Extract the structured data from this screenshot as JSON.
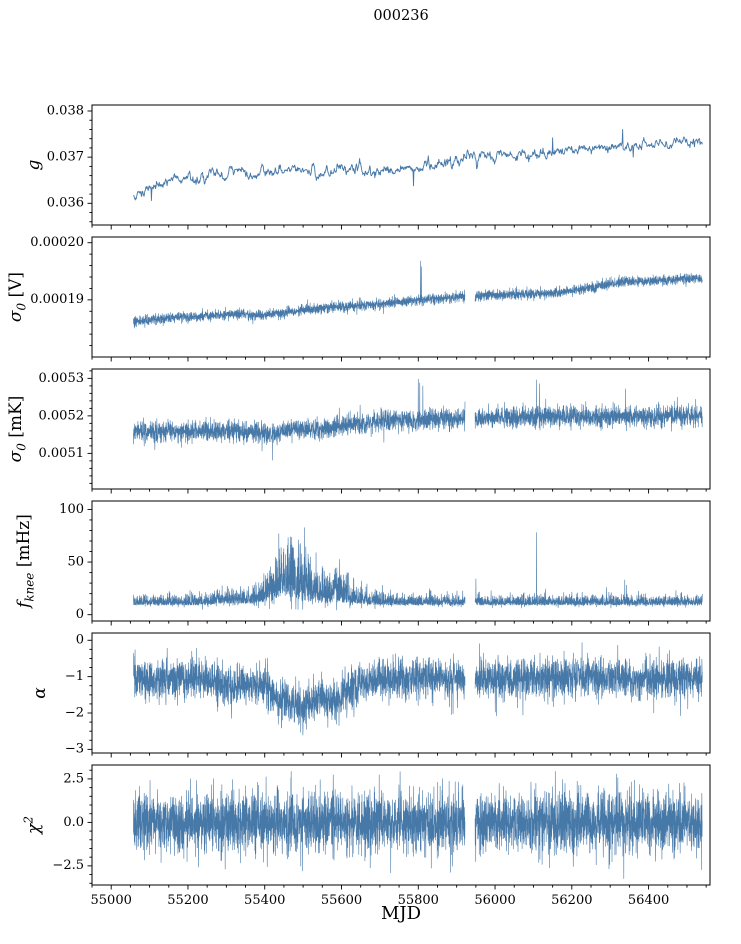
{
  "chart_meta": {
    "title": "000236",
    "xlabel": "MJD",
    "xlim": [
      54950,
      56560
    ],
    "xticks": [
      55000,
      55200,
      55400,
      55600,
      55800,
      56000,
      56200,
      56400
    ],
    "xtick_labels": [
      "55000",
      "55200",
      "55400",
      "55600",
      "55800",
      "56000",
      "56200",
      "56400"
    ],
    "x_minor_step": 50,
    "data_xrange": [
      55058,
      56540
    ],
    "gap": [
      55922,
      55948
    ],
    "line_color": "#4678a8",
    "axis_color": "#000000",
    "background": "#ffffff",
    "seed": 1337
  },
  "chart_data": [
    {
      "type": "line",
      "name": "gain",
      "ylabel_parts": {
        "main": "g"
      },
      "ylim": [
        0.03553,
        0.03813
      ],
      "yticks": [
        0.036,
        0.037,
        0.038
      ],
      "ytick_labels": [
        "0.036",
        "0.037",
        "0.038"
      ],
      "y_minor_step": 0.0002,
      "has_gap": false,
      "series": {
        "step": 1.2,
        "mode": "gauss",
        "noise": 4.2e-05,
        "ar": 0.78,
        "trend": [
          [
            55058,
            0.03615
          ],
          [
            55090,
            0.03632
          ],
          [
            55130,
            0.03645
          ],
          [
            55170,
            0.03652
          ],
          [
            55220,
            0.03658
          ],
          [
            55280,
            0.03662
          ],
          [
            55340,
            0.03664
          ],
          [
            55420,
            0.03666
          ],
          [
            55480,
            0.03676
          ],
          [
            55540,
            0.03664
          ],
          [
            55600,
            0.03676
          ],
          [
            55660,
            0.03668
          ],
          [
            55720,
            0.0367
          ],
          [
            55800,
            0.0368
          ],
          [
            55860,
            0.03684
          ],
          [
            55920,
            0.03698
          ],
          [
            56000,
            0.037
          ],
          [
            56080,
            0.03703
          ],
          [
            56160,
            0.03713
          ],
          [
            56240,
            0.03716
          ],
          [
            56320,
            0.03722
          ],
          [
            56400,
            0.03724
          ],
          [
            56470,
            0.03728
          ],
          [
            56540,
            0.0373
          ]
        ],
        "spikes": [
          [
            55105,
            0.03606
          ],
          [
            55788,
            0.03638
          ],
          [
            56088,
            0.0369
          ],
          [
            56150,
            0.03742
          ],
          [
            56332,
            0.0376
          ],
          [
            56360,
            0.037
          ]
        ]
      }
    },
    {
      "type": "line",
      "name": "sigma0-volts",
      "ylabel_parts": {
        "main": "σ",
        "sub": "0",
        "unit": " [V]"
      },
      "ylim": [
        0.00018,
        0.000201
      ],
      "yticks": [
        0.00019,
        0.0002
      ],
      "ytick_labels": [
        "0.00019",
        "0.00020"
      ],
      "y_minor_step": 2e-06,
      "has_gap": true,
      "series": {
        "step": 0.35,
        "mode": "gauss",
        "noise": 4.5e-07,
        "ar": 0,
        "trend": [
          [
            55058,
            0.0001862
          ],
          [
            55150,
            0.0001868
          ],
          [
            55250,
            0.0001872
          ],
          [
            55330,
            0.0001876
          ],
          [
            55360,
            0.0001872
          ],
          [
            55450,
            0.0001878
          ],
          [
            55550,
            0.0001886
          ],
          [
            55650,
            0.000189
          ],
          [
            55750,
            0.0001896
          ],
          [
            55850,
            0.0001902
          ],
          [
            55935,
            0.0001906
          ],
          [
            56050,
            0.000191
          ],
          [
            56150,
            0.0001912
          ],
          [
            56250,
            0.0001922
          ],
          [
            56350,
            0.0001933
          ],
          [
            56420,
            0.0001933
          ],
          [
            56480,
            0.0001936
          ],
          [
            56540,
            0.0001937
          ]
        ],
        "spikes": [
          [
            55806,
            0.0001968
          ],
          [
            55808,
            0.0001958
          ]
        ]
      }
    },
    {
      "type": "line",
      "name": "sigma0-mk",
      "ylabel_parts": {
        "main": "σ",
        "sub": "0",
        "unit": " [mK]"
      },
      "ylim": [
        0.005005,
        0.005325
      ],
      "yticks": [
        0.0051,
        0.0052,
        0.0053
      ],
      "ytick_labels": [
        "0.0051",
        "0.0052",
        "0.0053"
      ],
      "y_minor_step": 2e-05,
      "has_gap": true,
      "series": {
        "step": 0.35,
        "mode": "gauss",
        "noise": 1.35e-05,
        "ar": 0,
        "trend": [
          [
            55058,
            0.00516
          ],
          [
            55200,
            0.005158
          ],
          [
            55300,
            0.00516
          ],
          [
            55380,
            0.005156
          ],
          [
            55430,
            0.005152
          ],
          [
            55480,
            0.005168
          ],
          [
            55560,
            0.005164
          ],
          [
            55620,
            0.005178
          ],
          [
            55700,
            0.005186
          ],
          [
            55800,
            0.00519
          ],
          [
            55900,
            0.005192
          ],
          [
            56000,
            0.005196
          ],
          [
            56100,
            0.005197
          ],
          [
            56200,
            0.005199
          ],
          [
            56300,
            0.0052
          ],
          [
            56400,
            0.005198
          ],
          [
            56470,
            0.005202
          ],
          [
            56540,
            0.0052
          ]
        ],
        "spikes": [
          [
            55420,
            0.005082
          ],
          [
            55800,
            0.005298
          ],
          [
            55804,
            0.005288
          ],
          [
            55812,
            0.00528
          ],
          [
            56108,
            0.005296
          ],
          [
            56116,
            0.005286
          ],
          [
            56340,
            0.005272
          ],
          [
            56342,
            0.00516
          ]
        ]
      }
    },
    {
      "type": "line",
      "name": "fknee",
      "ylabel_parts": {
        "main": "f",
        "sub": "knee",
        "unit": " [mHz]"
      },
      "ylim": [
        -6,
        108
      ],
      "yticks": [
        0,
        50,
        100
      ],
      "ytick_labels": [
        "0",
        "50",
        "100"
      ],
      "y_minor_step": 10,
      "has_gap": true,
      "series": {
        "step": 0.35,
        "mode": "abs",
        "trend": [
          [
            55058,
            9
          ],
          [
            55250,
            9
          ],
          [
            55290,
            11
          ],
          [
            55330,
            10
          ],
          [
            55380,
            11
          ],
          [
            55420,
            14
          ],
          [
            55450,
            17
          ],
          [
            55480,
            15
          ],
          [
            55520,
            13
          ],
          [
            55560,
            11
          ],
          [
            55590,
            12
          ],
          [
            55620,
            11
          ],
          [
            55660,
            10
          ],
          [
            55720,
            9
          ],
          [
            55800,
            9
          ],
          [
            55900,
            9
          ],
          [
            56000,
            9
          ],
          [
            56100,
            9
          ],
          [
            56200,
            9
          ],
          [
            56300,
            9
          ],
          [
            56400,
            9
          ],
          [
            56540,
            9
          ]
        ],
        "spread": [
          [
            55058,
            4
          ],
          [
            55250,
            5
          ],
          [
            55300,
            7
          ],
          [
            55350,
            6
          ],
          [
            55390,
            9
          ],
          [
            55420,
            16
          ],
          [
            55445,
            24
          ],
          [
            55470,
            26
          ],
          [
            55500,
            22
          ],
          [
            55530,
            17
          ],
          [
            55555,
            13
          ],
          [
            55580,
            15
          ],
          [
            55605,
            14
          ],
          [
            55625,
            10
          ],
          [
            55650,
            7
          ],
          [
            55680,
            6
          ],
          [
            55720,
            5
          ],
          [
            55800,
            4.5
          ],
          [
            55900,
            4.5
          ],
          [
            56000,
            4.5
          ],
          [
            56540,
            4.2
          ]
        ],
        "spikes": [
          [
            55950,
            34
          ],
          [
            56108,
            78
          ],
          [
            56338,
            33
          ],
          [
            56342,
            28
          ]
        ]
      }
    },
    {
      "type": "line",
      "name": "alpha",
      "ylabel_parts": {
        "main": "α"
      },
      "ylim": [
        -3.1,
        0.2
      ],
      "yticks": [
        0,
        -1,
        -2,
        -3
      ],
      "ytick_labels": [
        "0",
        "−1",
        "−2",
        "−3"
      ],
      "y_minor_step": 0.25,
      "has_gap": true,
      "series": {
        "step": 0.35,
        "mode": "gauss",
        "noise": 0.28,
        "ar": 0,
        "trend": [
          [
            55058,
            -1.05
          ],
          [
            55200,
            -1.05
          ],
          [
            55260,
            -1.1
          ],
          [
            55310,
            -1.3
          ],
          [
            55360,
            -1.25
          ],
          [
            55395,
            -1.1
          ],
          [
            55425,
            -1.5
          ],
          [
            55460,
            -1.75
          ],
          [
            55500,
            -1.75
          ],
          [
            55540,
            -1.6
          ],
          [
            55575,
            -1.7
          ],
          [
            55610,
            -1.45
          ],
          [
            55650,
            -1.15
          ],
          [
            55700,
            -1.05
          ],
          [
            55800,
            -1.0
          ],
          [
            55900,
            -1.05
          ],
          [
            56100,
            -1.05
          ],
          [
            56300,
            -1.05
          ],
          [
            56540,
            -1.05
          ]
        ],
        "spikes": []
      }
    },
    {
      "type": "line",
      "name": "chi2",
      "ylabel_parts": {
        "main": "χ",
        "sup": "2"
      },
      "ylim": [
        -3.6,
        3.3
      ],
      "yticks": [
        2.5,
        0.0,
        -2.5
      ],
      "ytick_labels": [
        "2.5",
        "0.0",
        "−2.5"
      ],
      "y_minor_step": 0.5,
      "has_gap": true,
      "series": {
        "step": 0.33,
        "mode": "gauss",
        "noise": 0.88,
        "ar": 0,
        "trend": [
          [
            55058,
            0
          ],
          [
            56540,
            0
          ]
        ],
        "spikes": []
      }
    }
  ]
}
